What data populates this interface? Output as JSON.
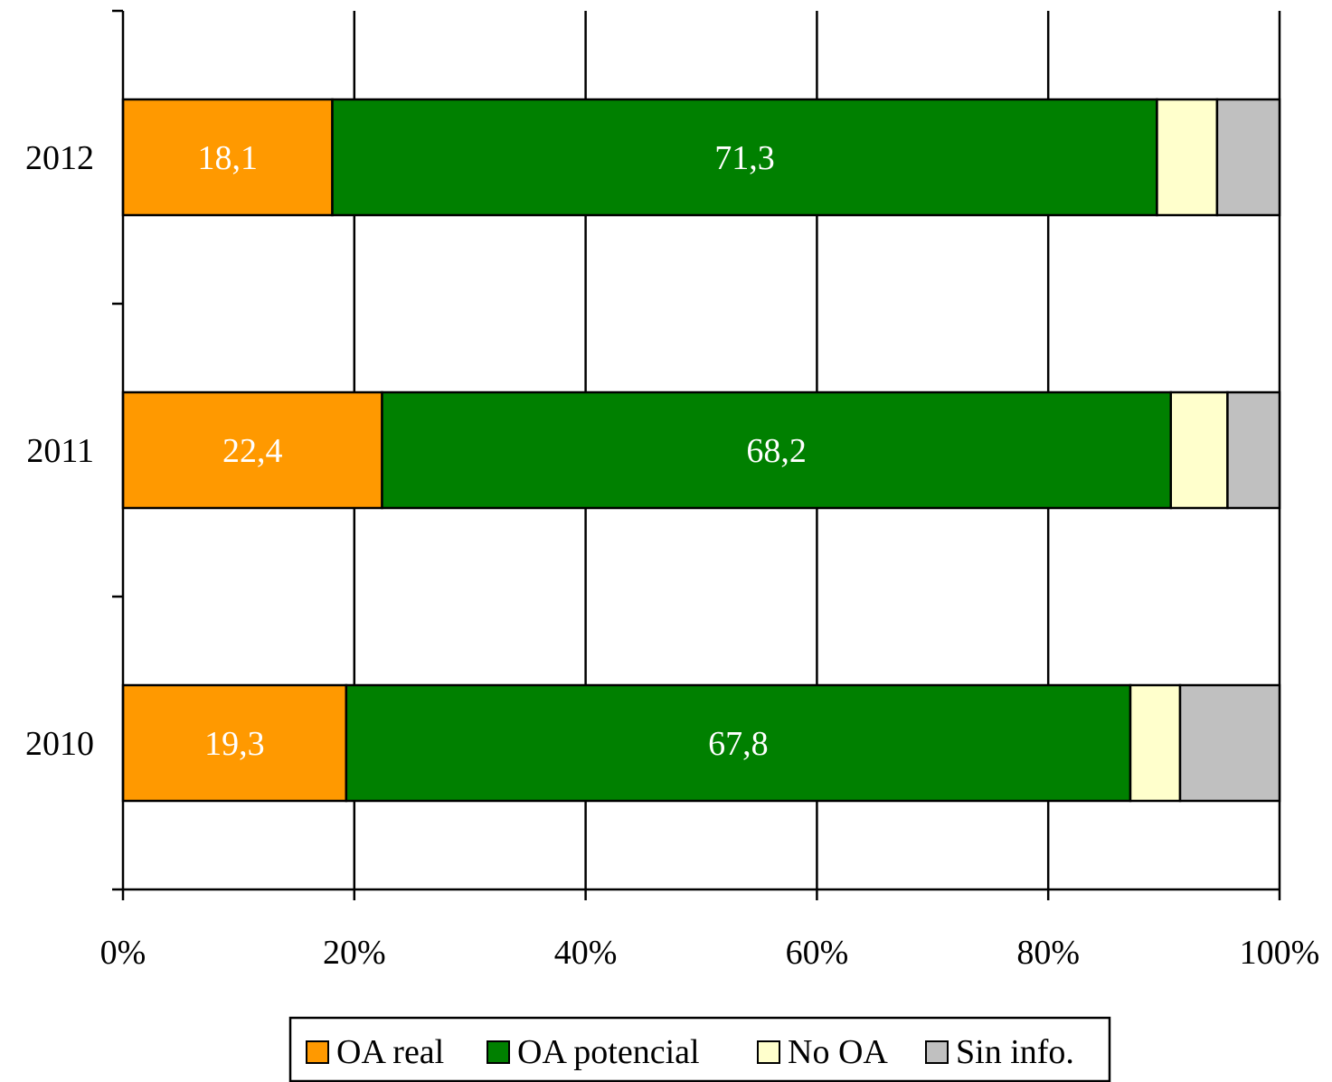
{
  "chart_data": {
    "type": "bar",
    "orientation": "horizontal",
    "stacked": "percent",
    "categories": [
      "2010",
      "2011",
      "2012"
    ],
    "series": [
      {
        "name": "OA real",
        "values": [
          19.3,
          22.4,
          18.1
        ],
        "color": "#ff9900",
        "labels": [
          "19,3",
          "22,4",
          "18,1"
        ]
      },
      {
        "name": "OA potencial",
        "values": [
          67.8,
          68.2,
          71.3
        ],
        "color": "#008000",
        "labels": [
          "67,8",
          "68,2",
          "71,3"
        ]
      },
      {
        "name": "No OA",
        "values": [
          4.3,
          4.9,
          5.2
        ],
        "color": "#ffffcc"
      },
      {
        "name": "Sin info.",
        "values": [
          8.6,
          4.5,
          5.4
        ],
        "color": "#c0c0c0"
      }
    ],
    "xlim": [
      0,
      100
    ],
    "xticks": [
      "0%",
      "20%",
      "40%",
      "60%",
      "80%",
      "100%"
    ],
    "grid": true,
    "legend": "bottom",
    "title": "",
    "xlabel": "",
    "ylabel": ""
  }
}
